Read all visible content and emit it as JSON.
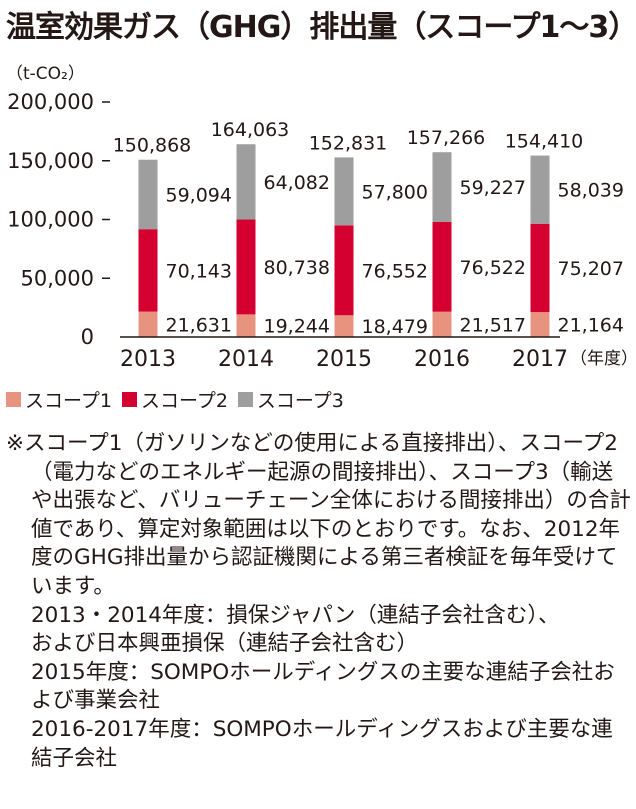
{
  "title": "温室効果ガス（GHG）排出量（スコープ1〜3）",
  "chart_data": {
    "type": "bar",
    "stacked": true,
    "unit_label": "（t-CO₂）",
    "x_unit_label": "（年度）",
    "categories": [
      "2013",
      "2014",
      "2015",
      "2016",
      "2017"
    ],
    "series": [
      {
        "name": "スコープ1",
        "color": "#e8937f",
        "values": [
          21631,
          19244,
          18479,
          21517,
          21164
        ],
        "labels": [
          "21,631",
          "19,244",
          "18,479",
          "21,517",
          "21,164"
        ]
      },
      {
        "name": "スコープ2",
        "color": "#d4002f",
        "values": [
          70143,
          80738,
          76552,
          76522,
          75207
        ],
        "labels": [
          "70,143",
          "80,738",
          "76,552",
          "76,522",
          "75,207"
        ]
      },
      {
        "name": "スコープ3",
        "color": "#9e9e9f",
        "values": [
          59094,
          64082,
          57800,
          59227,
          58039
        ],
        "labels": [
          "59,094",
          "64,082",
          "57,800",
          "59,227",
          "58,039"
        ]
      }
    ],
    "totals": [
      150868,
      164063,
      152831,
      157266,
      154410
    ],
    "total_labels": [
      "150,868",
      "164,063",
      "152,831",
      "157,266",
      "154,410"
    ],
    "yticks": [
      0,
      50000,
      100000,
      150000,
      200000
    ],
    "ytick_labels": [
      "0",
      "50,000",
      "100,000",
      "150,000",
      "200,000"
    ],
    "ylim": [
      0,
      200000
    ],
    "legend_position": "bottom-left"
  },
  "notes": {
    "paragraph": "※スコープ1（ガソリンなどの使用による直接排出）、スコープ2（電力などのエネルギー起源の間接排出）、スコープ3（輸送や出張など、バリューチェーン全体における間接排出）の合計値であり、算定対象範囲は以下のとおりです。なお、2012年度のGHG排出量から認証機関による第三者検証を毎年受けています。",
    "scope_2013_2014_a": "2013・2014年度：損保ジャパン（連結子会社含む）、",
    "scope_2013_2014_b": "および日本興亜損保（連結子会社含む）",
    "scope_2015": "2015年度：SOMPOホールディングスの主要な連結子会社および事業会社",
    "scope_2016_2017": "2016-2017年度：SOMPOホールディングスおよび主要な連結子会社"
  }
}
